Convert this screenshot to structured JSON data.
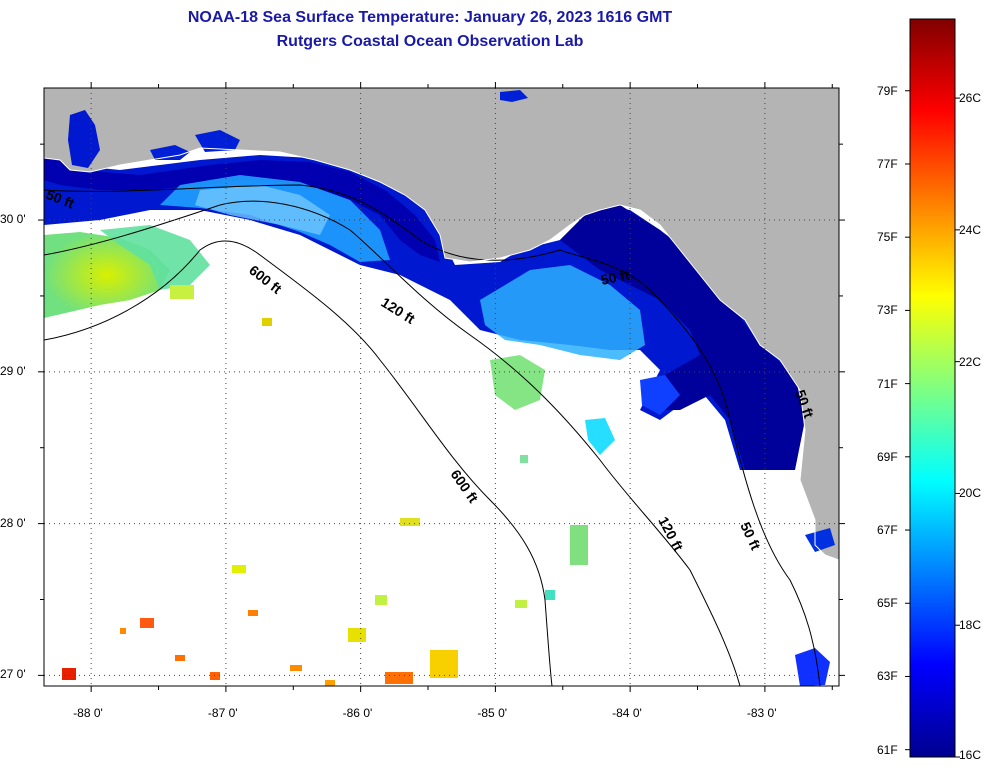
{
  "title": {
    "line1": "NOAA-18 Sea Surface Temperature:  January 26, 2023 1616 GMT",
    "line2": "Rutgers Coastal Ocean Observation Lab"
  },
  "map": {
    "lon_labels": [
      "-88 0'",
      "-87 0'",
      "-86 0'",
      "-85 0'",
      "-84 0'",
      "-83 0'"
    ],
    "lat_labels": [
      "30 0'",
      "29 0'",
      "28 0'",
      "27 0'"
    ],
    "lon_values": [
      -88,
      -87,
      -86,
      -85,
      -84,
      -83
    ],
    "lat_values": [
      30,
      29,
      28,
      27
    ],
    "lon_range": [
      -88.35,
      -82.45
    ],
    "lat_range": [
      26.93,
      30.87
    ],
    "contour_labels": [
      "50 ft",
      "600 ft",
      "120 ft",
      "50 ft",
      "600 ft",
      "120 ft",
      "50 ft",
      "50 ft"
    ],
    "colors": {
      "land": "#b4b4b4",
      "no_data": "#ffffff",
      "contour": "#000000",
      "grid": "#555555"
    }
  },
  "colorbar": {
    "fahrenheit_labels": [
      "79F",
      "77F",
      "75F",
      "73F",
      "71F",
      "69F",
      "67F",
      "65F",
      "63F",
      "61F"
    ],
    "celsius_labels": [
      "26C",
      "24C",
      "22C",
      "20C",
      "18C",
      "16C"
    ],
    "range_c": [
      16,
      27.2
    ],
    "gradient_colors": [
      "#00008f",
      "#0000ff",
      "#0080ff",
      "#00ffff",
      "#80ff80",
      "#ffff00",
      "#ff8000",
      "#ff0000",
      "#800000"
    ]
  }
}
